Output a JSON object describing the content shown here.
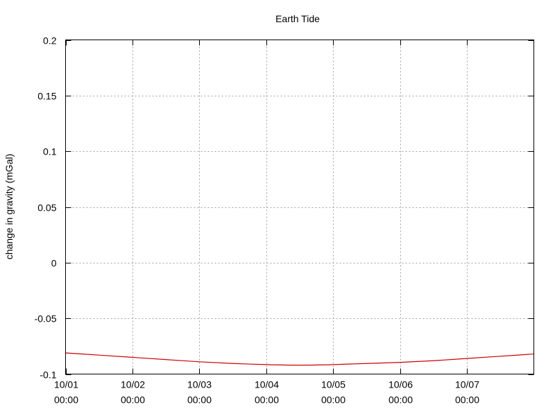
{
  "chart_data": {
    "type": "line",
    "title": "Earth Tide",
    "xlabel": "",
    "ylabel": "change in gravity (mGal)",
    "ylim": [
      -0.1,
      0.2
    ],
    "xlim": [
      "10/01 00:00",
      "10/08 00:00"
    ],
    "grid": true,
    "y_ticks": [
      {
        "value": -0.1,
        "label": "-0.1"
      },
      {
        "value": -0.05,
        "label": "-0.05"
      },
      {
        "value": 0,
        "label": "0"
      },
      {
        "value": 0.05,
        "label": "0.05"
      },
      {
        "value": 0.1,
        "label": "0.1"
      },
      {
        "value": 0.15,
        "label": "0.15"
      },
      {
        "value": 0.2,
        "label": "0.2"
      }
    ],
    "x_ticks": [
      {
        "value": "10/01 00:00",
        "date": "10/01",
        "time": "00:00"
      },
      {
        "value": "10/02 00:00",
        "date": "10/02",
        "time": "00:00"
      },
      {
        "value": "10/03 00:00",
        "date": "10/03",
        "time": "00:00"
      },
      {
        "value": "10/04 00:00",
        "date": "10/04",
        "time": "00:00"
      },
      {
        "value": "10/05 00:00",
        "date": "10/05",
        "time": "00:00"
      },
      {
        "value": "10/06 00:00",
        "date": "10/06",
        "time": "00:00"
      },
      {
        "value": "10/07 00:00",
        "date": "10/07",
        "time": "00:00"
      }
    ],
    "series": [
      {
        "color": "#cc0000",
        "points": [
          {
            "x": "10/01 00:00",
            "y": -0.081
          },
          {
            "x": "10/01 12:00",
            "y": -0.083
          },
          {
            "x": "10/02 00:00",
            "y": -0.085
          },
          {
            "x": "10/02 12:00",
            "y": -0.087
          },
          {
            "x": "10/03 00:00",
            "y": -0.089
          },
          {
            "x": "10/03 12:00",
            "y": -0.0905
          },
          {
            "x": "10/04 00:00",
            "y": -0.0915
          },
          {
            "x": "10/04 12:00",
            "y": -0.092
          },
          {
            "x": "10/05 00:00",
            "y": -0.0915
          },
          {
            "x": "10/05 12:00",
            "y": -0.0905
          },
          {
            "x": "10/06 00:00",
            "y": -0.0895
          },
          {
            "x": "10/06 12:00",
            "y": -0.088
          },
          {
            "x": "10/07 00:00",
            "y": -0.086
          },
          {
            "x": "10/07 12:00",
            "y": -0.084
          },
          {
            "x": "10/08 00:00",
            "y": -0.082
          }
        ]
      }
    ]
  }
}
